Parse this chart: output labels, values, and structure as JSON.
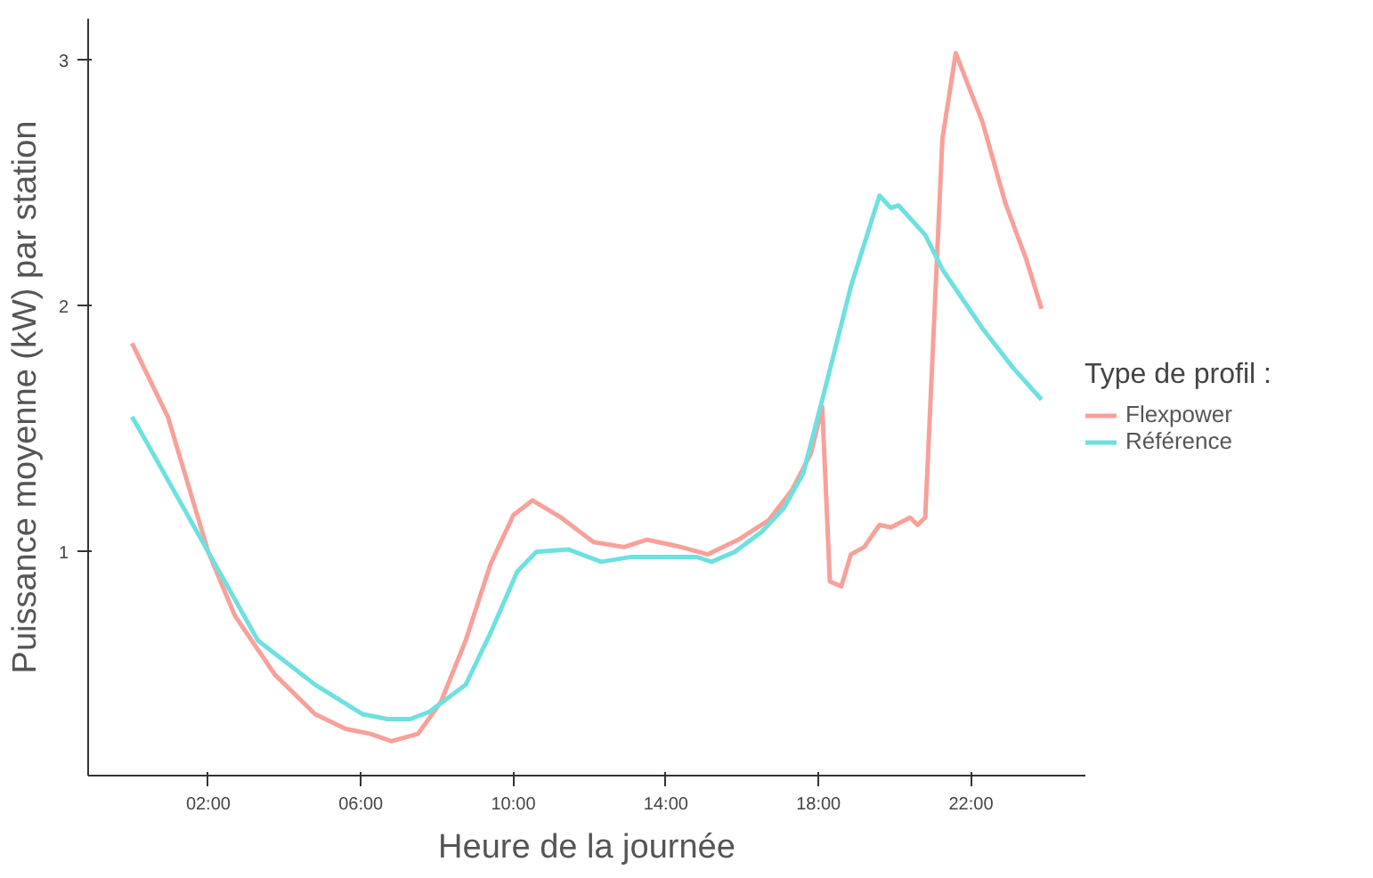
{
  "chart_data": {
    "type": "line",
    "xlabel": "Heure de la journée",
    "ylabel": "Puissance moyenne (kW) par station",
    "legend_title": "Type de profil :",
    "legend": "right",
    "grid": false,
    "xlim": [
      -1.15,
      25
    ],
    "ylim": [
      0.09,
      3.17
    ],
    "xticks": [
      {
        "value": 2,
        "label": "02:00"
      },
      {
        "value": 6,
        "label": "06:00"
      },
      {
        "value": 10,
        "label": "10:00"
      },
      {
        "value": 14,
        "label": "14:00"
      },
      {
        "value": 18,
        "label": "18:00"
      },
      {
        "value": 22,
        "label": "22:00"
      }
    ],
    "yticks": [
      1,
      2,
      3
    ],
    "series": [
      {
        "name": "Flexpower",
        "color": "#f8a09a",
        "x": [
          0,
          0.94,
          2,
          2.7,
          3.75,
          4.8,
          5.6,
          6.25,
          6.8,
          7.5,
          8.1,
          8.75,
          9.4,
          10,
          10.5,
          11.25,
          12.1,
          12.9,
          13.5,
          14.4,
          15.1,
          15.9,
          16.7,
          17.3,
          17.8,
          18.1,
          18.3,
          18.6,
          18.85,
          19.2,
          19.6,
          19.9,
          20.4,
          20.6,
          20.8,
          21.25,
          21.6,
          22.3,
          22.9,
          23.45,
          23.85
        ],
        "values": [
          1.85,
          1.55,
          1.0,
          0.74,
          0.5,
          0.34,
          0.28,
          0.26,
          0.23,
          0.26,
          0.39,
          0.64,
          0.95,
          1.15,
          1.21,
          1.14,
          1.04,
          1.02,
          1.05,
          1.02,
          0.99,
          1.05,
          1.13,
          1.25,
          1.4,
          1.59,
          0.88,
          0.86,
          0.99,
          1.02,
          1.11,
          1.1,
          1.14,
          1.11,
          1.14,
          2.68,
          3.03,
          2.75,
          2.42,
          2.19,
          1.99
        ]
      },
      {
        "name": "Référence",
        "color": "#6fe0e0",
        "x": [
          0,
          0.3,
          2,
          3.3,
          4.8,
          6.05,
          6.7,
          7.3,
          7.8,
          8.75,
          9.4,
          10.1,
          10.6,
          11.45,
          12.3,
          13.1,
          14.8,
          15.2,
          15.8,
          16.5,
          17.1,
          17.6,
          18.1,
          18.85,
          19.6,
          19.9,
          20.1,
          20.8,
          21.25,
          22.3,
          23.1,
          23.85
        ],
        "values": [
          1.55,
          1.47,
          1.0,
          0.64,
          0.46,
          0.34,
          0.32,
          0.32,
          0.35,
          0.46,
          0.67,
          0.92,
          1.0,
          1.01,
          0.96,
          0.98,
          0.98,
          0.96,
          1.0,
          1.08,
          1.18,
          1.32,
          1.62,
          2.08,
          2.45,
          2.4,
          2.41,
          2.29,
          2.15,
          1.91,
          1.75,
          1.62
        ]
      }
    ]
  }
}
